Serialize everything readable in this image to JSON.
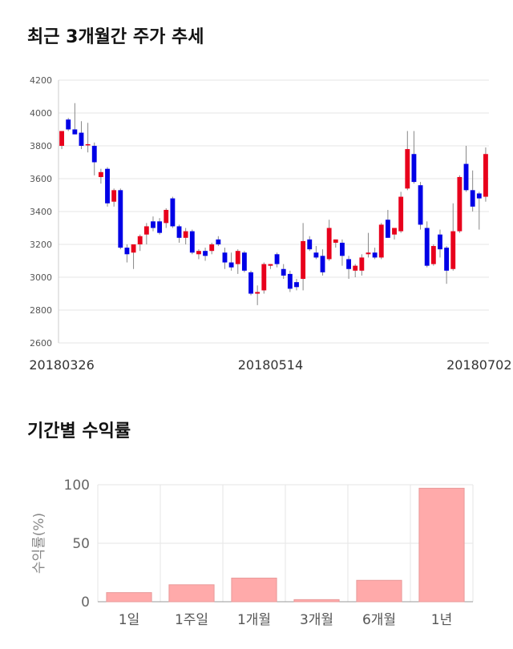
{
  "candle_title": "최근 3개월간 주가 추세",
  "bar_title": "기간별 수익률",
  "colors": {
    "up": "#e8001c",
    "down": "#0000e6",
    "bar": "#ffaaaa",
    "bar_stroke": "#e89a9a",
    "grid": "#e6e6e6"
  },
  "chart_data": [
    {
      "type": "candlestick",
      "title": "최근 3개월간 주가 추세",
      "ylim": [
        2600,
        4200
      ],
      "yticks": [
        "2600",
        "2800",
        "3000",
        "3200",
        "3400",
        "3600",
        "3800",
        "4000",
        "4200"
      ],
      "xticks": [
        {
          "index": 0,
          "label": "20180326"
        },
        {
          "index": 32,
          "label": "20180514"
        },
        {
          "index": 64,
          "label": "20180702"
        }
      ],
      "candles": [
        [
          3800,
          3890,
          3780,
          3890
        ],
        [
          3960,
          3970,
          3890,
          3900
        ],
        [
          3900,
          4060,
          3870,
          3870
        ],
        [
          3880,
          3950,
          3780,
          3800
        ],
        [
          3810,
          3940,
          3760,
          3810
        ],
        [
          3800,
          3820,
          3620,
          3700
        ],
        [
          3610,
          3660,
          3570,
          3640
        ],
        [
          3660,
          3670,
          3430,
          3450
        ],
        [
          3460,
          3540,
          3430,
          3530
        ],
        [
          3530,
          3540,
          3170,
          3180
        ],
        [
          3180,
          3200,
          3090,
          3140
        ],
        [
          3150,
          3200,
          3050,
          3200
        ],
        [
          3200,
          3260,
          3160,
          3250
        ],
        [
          3260,
          3330,
          3200,
          3310
        ],
        [
          3340,
          3370,
          3280,
          3300
        ],
        [
          3340,
          3360,
          3260,
          3270
        ],
        [
          3330,
          3420,
          3300,
          3410
        ],
        [
          3480,
          3490,
          3300,
          3310
        ],
        [
          3310,
          3320,
          3210,
          3240
        ],
        [
          3240,
          3300,
          3200,
          3280
        ],
        [
          3280,
          3290,
          3140,
          3150
        ],
        [
          3140,
          3170,
          3110,
          3160
        ],
        [
          3160,
          3180,
          3100,
          3130
        ],
        [
          3160,
          3210,
          3140,
          3200
        ],
        [
          3230,
          3250,
          3190,
          3200
        ],
        [
          3150,
          3180,
          3050,
          3090
        ],
        [
          3090,
          3150,
          3040,
          3060
        ],
        [
          3080,
          3170,
          3020,
          3160
        ],
        [
          3150,
          3160,
          3030,
          3040
        ],
        [
          3030,
          3040,
          2890,
          2900
        ],
        [
          2900,
          2950,
          2830,
          2910
        ],
        [
          2920,
          3090,
          2900,
          3080
        ],
        [
          3070,
          3080,
          3050,
          3080
        ],
        [
          3140,
          3150,
          3060,
          3080
        ],
        [
          3050,
          3080,
          2990,
          3010
        ],
        [
          3020,
          3040,
          2910,
          2930
        ],
        [
          2970,
          2990,
          2920,
          2940
        ],
        [
          2990,
          3330,
          2920,
          3220
        ],
        [
          3230,
          3250,
          3160,
          3170
        ],
        [
          3150,
          3190,
          3110,
          3120
        ],
        [
          3130,
          3170,
          3010,
          3030
        ],
        [
          3110,
          3350,
          3100,
          3300
        ],
        [
          3210,
          3230,
          3180,
          3230
        ],
        [
          3210,
          3230,
          3070,
          3130
        ],
        [
          3110,
          3130,
          2990,
          3050
        ],
        [
          3040,
          3080,
          3000,
          3070
        ],
        [
          3040,
          3140,
          3010,
          3120
        ],
        [
          3140,
          3270,
          3120,
          3150
        ],
        [
          3150,
          3180,
          3110,
          3120
        ],
        [
          3120,
          3330,
          3110,
          3320
        ],
        [
          3350,
          3410,
          3240,
          3240
        ],
        [
          3260,
          3300,
          3230,
          3300
        ],
        [
          3280,
          3520,
          3270,
          3490
        ],
        [
          3540,
          3890,
          3530,
          3780
        ],
        [
          3750,
          3890,
          3570,
          3580
        ],
        [
          3560,
          3580,
          3290,
          3320
        ],
        [
          3300,
          3340,
          3060,
          3070
        ],
        [
          3080,
          3200,
          3070,
          3190
        ],
        [
          3260,
          3290,
          3120,
          3170
        ],
        [
          3180,
          3190,
          2960,
          3040
        ],
        [
          3050,
          3450,
          3040,
          3280
        ],
        [
          3280,
          3620,
          3270,
          3610
        ],
        [
          3690,
          3800,
          3520,
          3530
        ],
        [
          3530,
          3650,
          3400,
          3430
        ],
        [
          3510,
          3520,
          3290,
          3480
        ],
        [
          3490,
          3790,
          3460,
          3750
        ]
      ]
    },
    {
      "type": "bar",
      "categories": [
        "1일",
        "1주일",
        "1개월",
        "3개월",
        "6개월",
        "1년"
      ],
      "values": [
        7.8,
        14.5,
        20.2,
        1.8,
        18.3,
        97.0
      ],
      "ylabel": "수익률(%)",
      "ylim": [
        0,
        100
      ],
      "yticks": [
        "0",
        "50",
        "100"
      ],
      "grid": true
    }
  ]
}
